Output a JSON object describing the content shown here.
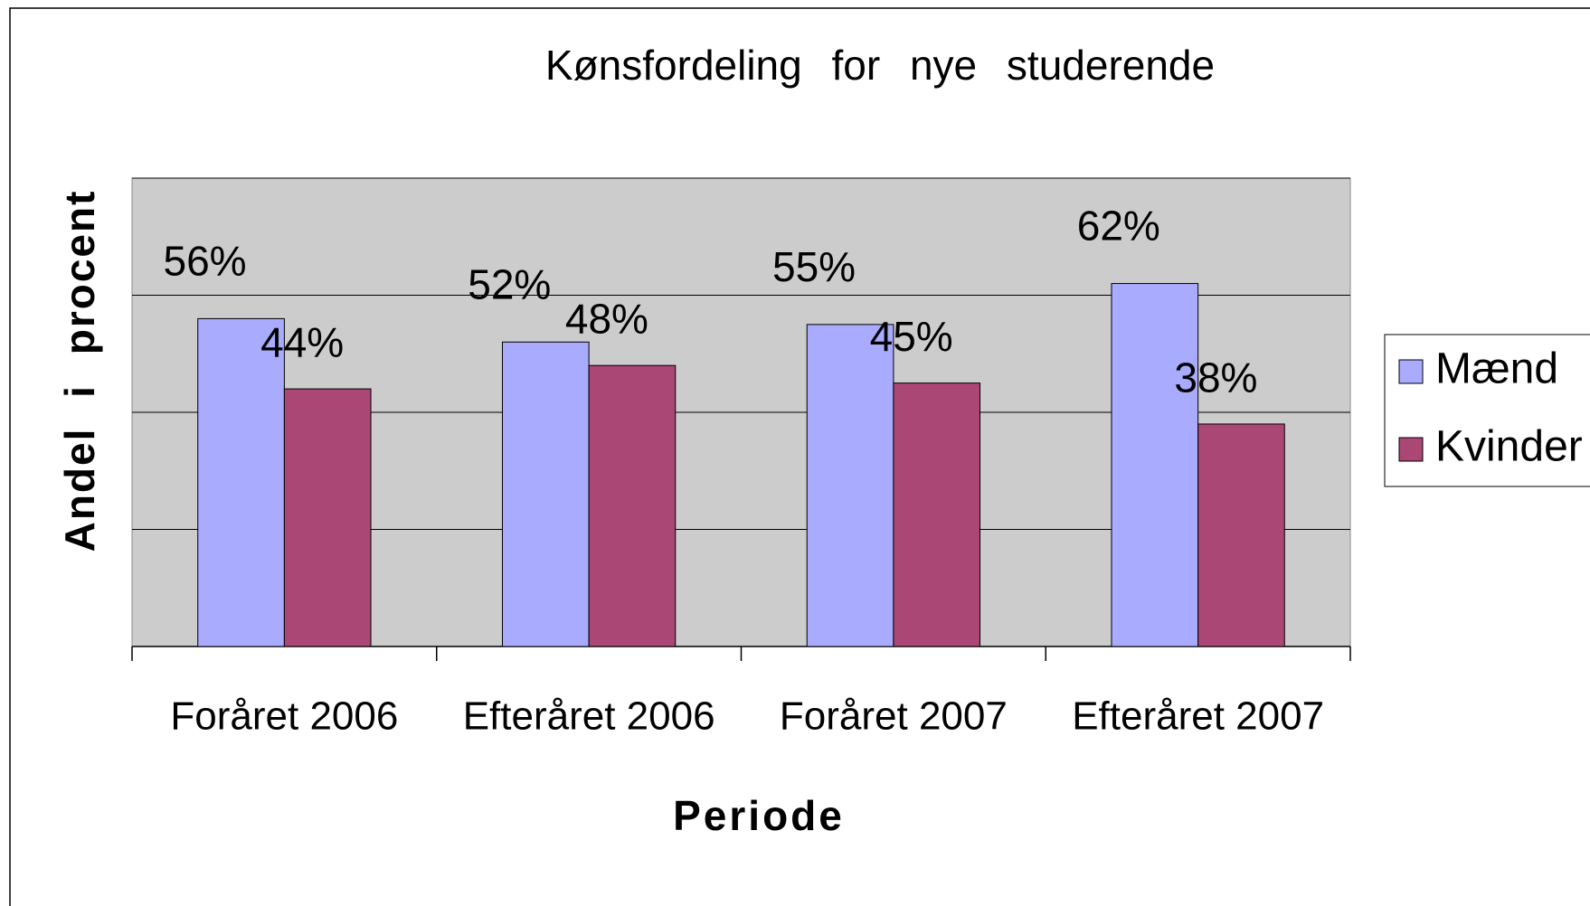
{
  "chart_data": {
    "type": "bar",
    "title": "Kønsfordeling for nye studerende",
    "x_label": "Periode",
    "y_label": "Andel i procent",
    "categories": [
      "Foråret 2006",
      "Efteråret 2006",
      "Foråret 2007",
      "Efteråret 2007"
    ],
    "series": [
      {
        "name": "Mænd",
        "color": "#a9abfe",
        "values": [
          56,
          52,
          55,
          62
        ],
        "value_labels": [
          "56%",
          "52%",
          "55%",
          "62%"
        ]
      },
      {
        "name": "Kvinder",
        "color": "#aa4775",
        "values": [
          44,
          48,
          45,
          38
        ],
        "value_labels": [
          "44%",
          "48%",
          "45%",
          "38%"
        ]
      }
    ],
    "ylim": [
      0,
      80
    ],
    "yticks": [
      0,
      20,
      40,
      60,
      80
    ],
    "grid": true,
    "legend": "right"
  }
}
